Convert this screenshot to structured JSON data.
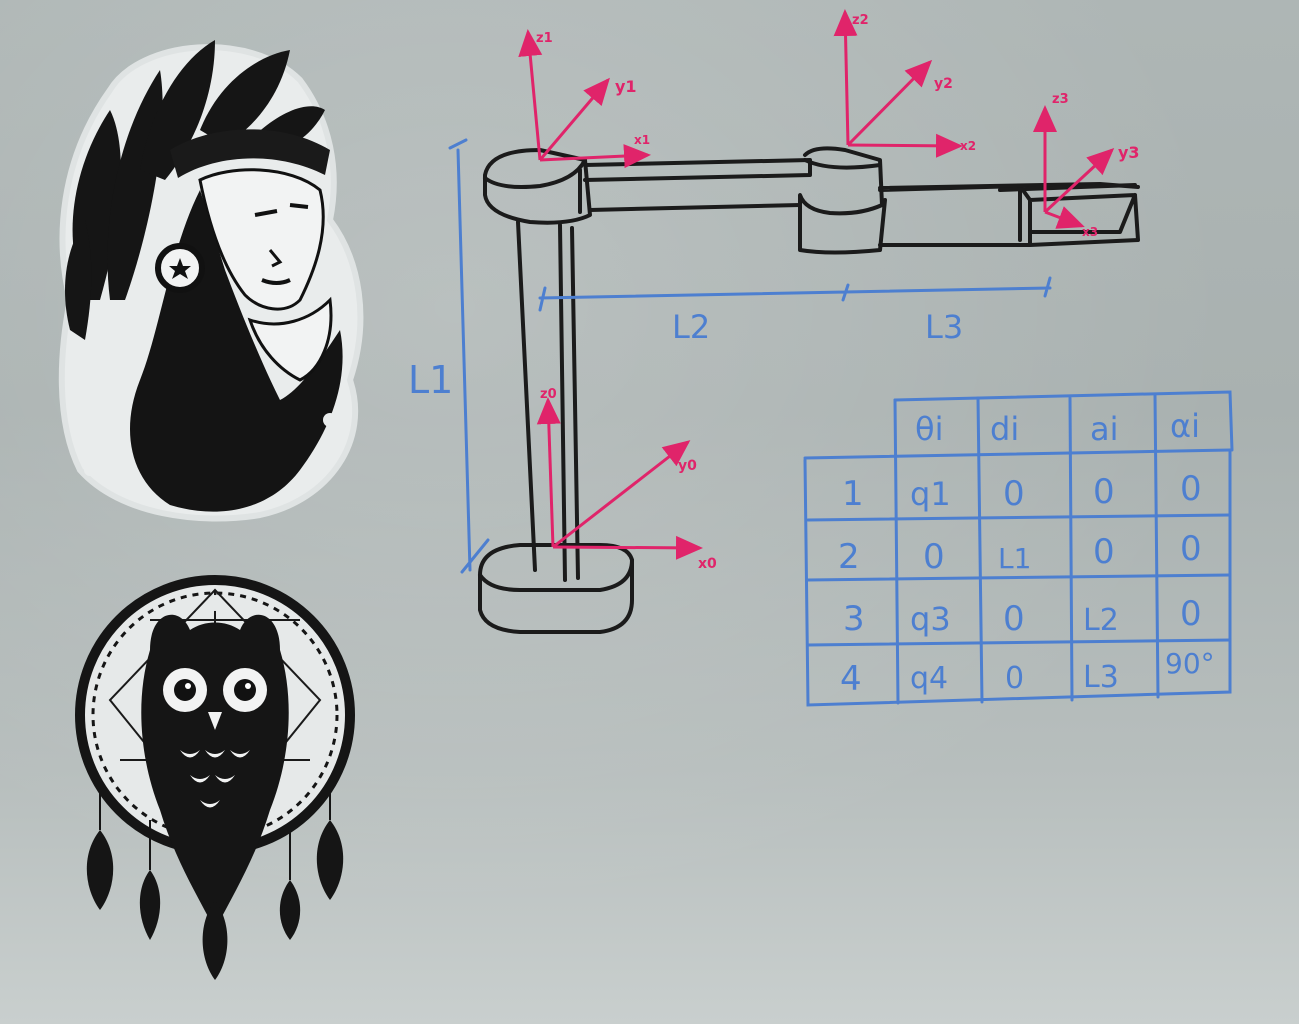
{
  "robot_labels": {
    "L1": "L1",
    "L2": "L2",
    "L3": "L3"
  },
  "frames": {
    "f0": {
      "z": "z0",
      "y": "y0",
      "x": "x0"
    },
    "f1": {
      "z": "z1",
      "y": "y1",
      "x": "x1"
    },
    "f2": {
      "z": "z2",
      "y": "y2",
      "x": "x2"
    },
    "f3": {
      "z": "z3",
      "y": "y3",
      "x": "x3"
    }
  },
  "dh_table": {
    "headers": [
      "θi",
      "di",
      "ai",
      "αi"
    ],
    "rows": [
      {
        "i": "1",
        "theta": "q1",
        "d": "0",
        "a": "0",
        "alpha": "0"
      },
      {
        "i": "2",
        "theta": "0",
        "d": "L1",
        "a": "0",
        "alpha": "0"
      },
      {
        "i": "3",
        "theta": "q3",
        "d": "0",
        "a": "L2",
        "alpha": "0"
      },
      {
        "i": "4",
        "theta": "q4",
        "d": "0",
        "a": "L3",
        "alpha": "90°"
      }
    ]
  },
  "colors": {
    "marker_black": "#1b1b1b",
    "marker_blue": "#4d7fd0",
    "marker_red": "#e0246a",
    "board": "#aeb6b5"
  },
  "stickers": [
    "indian-headdress-woman-sticker",
    "owl-dreamcatcher-sticker"
  ]
}
